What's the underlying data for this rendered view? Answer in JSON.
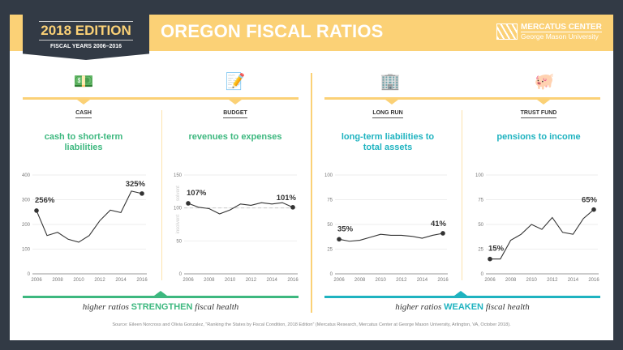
{
  "header": {
    "edition": "2018 EDITION",
    "fiscal_years": "FISCAL YEARS 2006–2016",
    "title": "OREGON FISCAL RATIOS",
    "logo_line1": "MERCATUS CENTER",
    "logo_line2": "George Mason University"
  },
  "colors": {
    "strengthen": "#3db87f",
    "weaken": "#1fb3c0",
    "accent": "#fbd176",
    "dark": "#323a45"
  },
  "sections": [
    {
      "category": "CASH",
      "subtitle": "cash to short-term liabilities",
      "icon": "cash-coins-icon"
    },
    {
      "category": "BUDGET",
      "subtitle": "revenues to expenses",
      "icon": "budget-document-icon"
    },
    {
      "category": "LONG RUN",
      "subtitle": "long-term liabilities to total assets",
      "icon": "stacked-bills-icon"
    },
    {
      "category": "TRUST FUND",
      "subtitle": "pensions to income",
      "icon": "piggy-bank-icon"
    }
  ],
  "footer": {
    "left_pre": "higher ratios ",
    "left_key": "STRENGTHEN",
    "left_post": " fiscal health",
    "right_pre": "higher ratios ",
    "right_key": "WEAKEN",
    "right_post": " fiscal health",
    "source": "Source: Eileen Norcross and Olivia Gonzalez, “Ranking the States by Fiscal Condition, 2018 Edition” (Mercatus Research, Mercatus Center at George Mason University, Arlington, VA, October 2018)."
  },
  "chart_data": [
    {
      "type": "line",
      "x": [
        2006,
        2007,
        2008,
        2009,
        2010,
        2011,
        2012,
        2013,
        2014,
        2015,
        2016
      ],
      "values": [
        256,
        155,
        168,
        140,
        128,
        155,
        215,
        258,
        248,
        335,
        325
      ],
      "ylim": [
        0,
        400
      ],
      "yticks": [
        0,
        100,
        200,
        300,
        400
      ],
      "xticks": [
        2006,
        2008,
        2010,
        2012,
        2014,
        2016
      ],
      "start_label": "256%",
      "end_label": "325%",
      "grid": true
    },
    {
      "type": "line",
      "x": [
        2006,
        2007,
        2008,
        2009,
        2010,
        2011,
        2012,
        2013,
        2014,
        2015,
        2016
      ],
      "values": [
        107,
        101,
        99,
        91,
        97,
        106,
        104,
        108,
        106,
        108,
        101
      ],
      "ylim": [
        0,
        150
      ],
      "yticks": [
        0,
        50,
        100,
        150
      ],
      "xticks": [
        2006,
        2008,
        2010,
        2012,
        2014,
        2016
      ],
      "start_label": "107%",
      "end_label": "101%",
      "reference_line": 100,
      "above_label": "solvent",
      "below_label": "insolvent",
      "grid": true
    },
    {
      "type": "line",
      "x": [
        2006,
        2007,
        2008,
        2009,
        2010,
        2011,
        2012,
        2013,
        2014,
        2015,
        2016
      ],
      "values": [
        35,
        33,
        34,
        37,
        40,
        39,
        39,
        38,
        36,
        39,
        41
      ],
      "ylim": [
        0,
        100
      ],
      "yticks": [
        0,
        25,
        50,
        75,
        100
      ],
      "xticks": [
        2006,
        2008,
        2010,
        2012,
        2014,
        2016
      ],
      "start_label": "35%",
      "end_label": "41%",
      "grid": true
    },
    {
      "type": "line",
      "x": [
        2006,
        2007,
        2008,
        2009,
        2010,
        2011,
        2012,
        2013,
        2014,
        2015,
        2016
      ],
      "values": [
        15,
        15,
        34,
        40,
        50,
        45,
        57,
        42,
        40,
        56,
        65
      ],
      "ylim": [
        0,
        100
      ],
      "yticks": [
        0,
        25,
        50,
        75,
        100
      ],
      "xticks": [
        2006,
        2008,
        2010,
        2012,
        2014,
        2016
      ],
      "start_label": "15%",
      "end_label": "65%",
      "grid": true
    }
  ]
}
